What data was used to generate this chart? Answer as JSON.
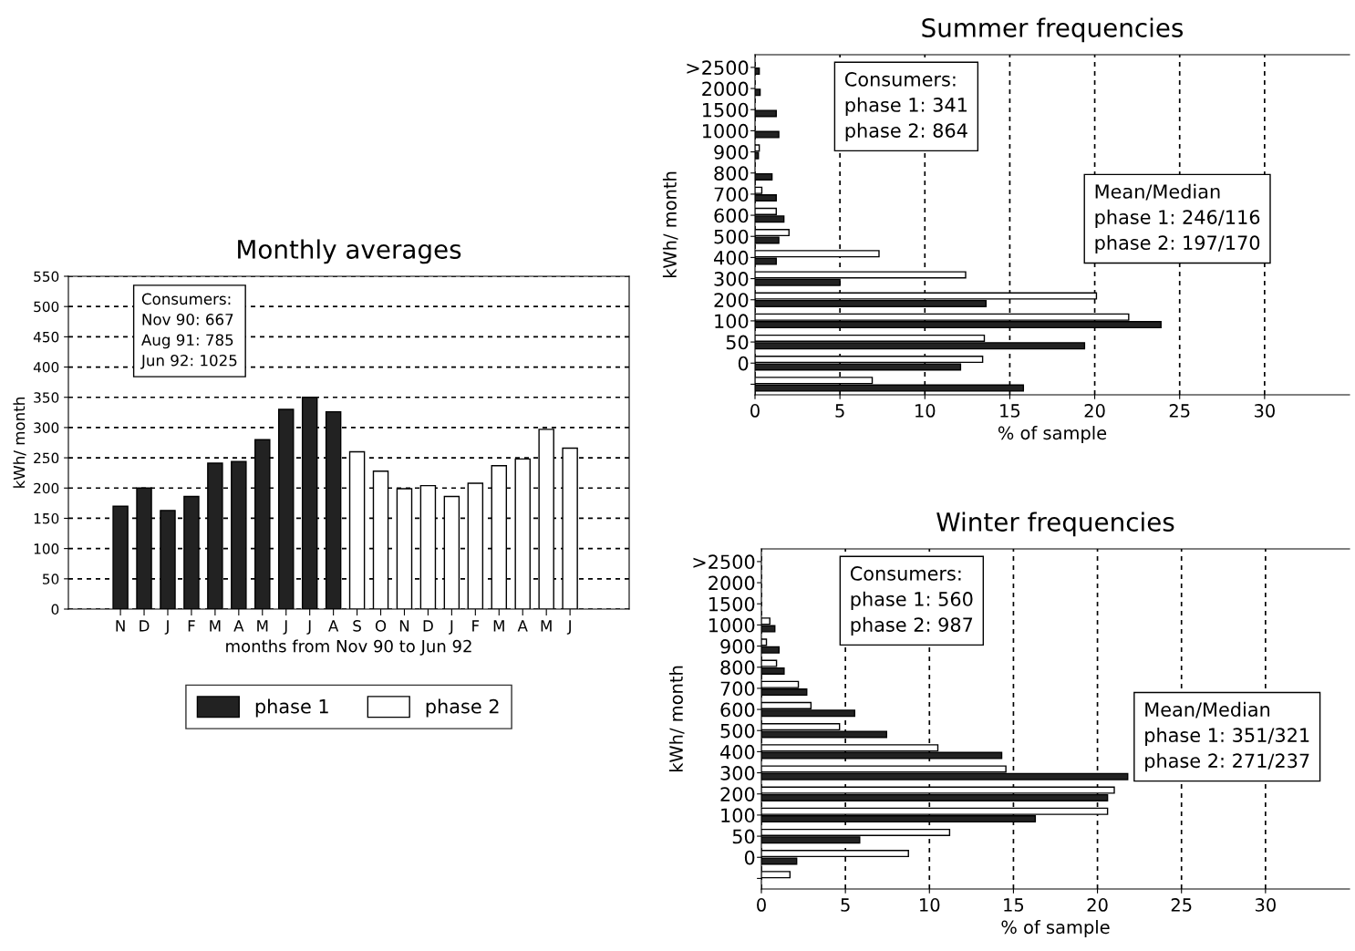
{
  "chart_data": [
    {
      "type": "bar",
      "title": "Monthly averages",
      "xlabel": "months from Nov 90 to Jun 92",
      "ylabel": "kWh/ month",
      "categories": [
        "N",
        "D",
        "J",
        "F",
        "M",
        "A",
        "M",
        "J",
        "J",
        "A",
        "S",
        "O",
        "N",
        "D",
        "J",
        "F",
        "M",
        "A",
        "M",
        "J"
      ],
      "series": [
        {
          "name": "phase 1",
          "color": "#222222",
          "values": [
            170,
            200,
            163,
            186,
            241,
            244,
            280,
            330,
            350,
            326,
            null,
            null,
            null,
            null,
            null,
            null,
            null,
            null,
            null,
            null
          ]
        },
        {
          "name": "phase 2",
          "color": "#ffffff",
          "values": [
            null,
            null,
            null,
            null,
            null,
            null,
            null,
            null,
            null,
            null,
            260,
            228,
            199,
            204,
            186,
            208,
            237,
            248,
            297,
            266
          ]
        }
      ],
      "ylim": [
        0,
        550
      ],
      "yticks": [
        0,
        50,
        100,
        150,
        200,
        250,
        300,
        350,
        400,
        450,
        500,
        550
      ],
      "grid": "y",
      "legend": "bottom",
      "annotations": [
        "Consumers:\nNov 90: 667\nAug 91: 785\nJun 92: 1025"
      ]
    },
    {
      "type": "bar",
      "orientation": "horizontal",
      "title": "Summer frequencies",
      "xlabel": "% of sample",
      "ylabel": "kWh/ month",
      "categories": [
        ">2500",
        "2000",
        "1500",
        "1000",
        "900",
        "800",
        "700",
        "600",
        "500",
        "400",
        "300",
        "200",
        "100",
        "50",
        "0",
        null
      ],
      "series": [
        {
          "color": "#ffffff",
          "values": [
            null,
            null,
            null,
            null,
            0.25,
            null,
            0.4,
            1.25,
            2.0,
            7.3,
            12.4,
            20.1,
            22.0,
            13.5,
            13.4,
            6.9
          ]
        },
        {
          "color": "#222222",
          "values": [
            0.25,
            0.3,
            1.25,
            1.4,
            0.2,
            1.0,
            1.25,
            1.7,
            1.4,
            1.25,
            5.0,
            13.6,
            23.9,
            19.4,
            12.1,
            15.8
          ]
        }
      ],
      "xlim": [
        0,
        35
      ],
      "xticks": [
        0,
        5,
        10,
        15,
        20,
        25,
        30
      ],
      "grid": "x",
      "legend": false,
      "annotations": [
        "Consumers:\nphase 1: 341\nphase 2: 864",
        "Mean/Median\nphase 1: 246/116\nphase 2: 197/170"
      ]
    },
    {
      "type": "bar",
      "orientation": "horizontal",
      "title": "Winter frequencies",
      "xlabel": "% of sample",
      "ylabel": "kWh/ month",
      "categories": [
        ">2500",
        "2000",
        "1500",
        "1000",
        "900",
        "800",
        "700",
        "600",
        "500",
        "400",
        "300",
        "200",
        "100",
        "50",
        "0",
        null
      ],
      "series": [
        {
          "color": "#ffffff",
          "values": [
            null,
            null,
            null,
            0.5,
            0.3,
            0.9,
            2.2,
            2.95,
            4.65,
            10.5,
            14.55,
            21.0,
            20.6,
            11.2,
            8.75,
            1.7
          ]
        },
        {
          "color": "#222222",
          "values": [
            null,
            null,
            null,
            0.8,
            1.05,
            1.35,
            2.7,
            5.55,
            7.45,
            14.3,
            21.8,
            20.6,
            16.3,
            5.85,
            2.1,
            null
          ]
        }
      ],
      "xlim": [
        0,
        35
      ],
      "xticks": [
        0,
        5,
        10,
        15,
        20,
        25,
        30
      ],
      "grid": "x",
      "legend": false,
      "annotations": [
        "Consumers:\nphase 1: 560\nphase 2: 987",
        "Mean/Median\nphase 1: 351/321\nphase 2: 271/237"
      ]
    }
  ]
}
